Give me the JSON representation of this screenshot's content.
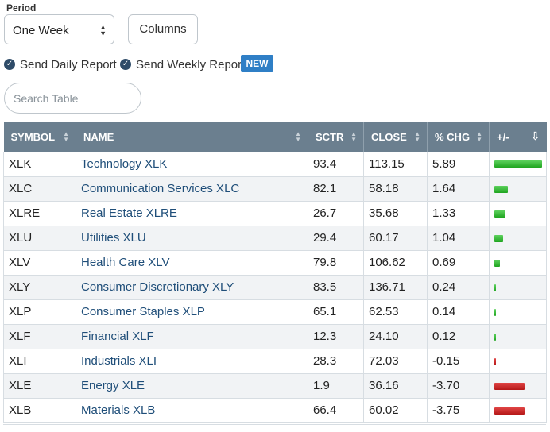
{
  "period": {
    "label": "Period",
    "value": "One Week"
  },
  "columns_button": "Columns",
  "checkboxes": [
    {
      "label": "Send Daily Report",
      "checked": true
    },
    {
      "label": "Send Weekly Report",
      "checked": true
    }
  ],
  "new_badge": "NEW",
  "search": {
    "placeholder": "Search Table",
    "value": ""
  },
  "table": {
    "headers": [
      "SYMBOL",
      "NAME",
      "SCTR",
      "CLOSE",
      "% CHG",
      "+/-"
    ],
    "rows": [
      {
        "symbol": "XLK",
        "name": "Technology XLK",
        "sctr": "93.4",
        "close": "113.15",
        "chg": "5.89"
      },
      {
        "symbol": "XLC",
        "name": "Communication Services XLC",
        "sctr": "82.1",
        "close": "58.18",
        "chg": "1.64"
      },
      {
        "symbol": "XLRE",
        "name": "Real Estate XLRE",
        "sctr": "26.7",
        "close": "35.68",
        "chg": "1.33"
      },
      {
        "symbol": "XLU",
        "name": "Utilities XLU",
        "sctr": "29.4",
        "close": "60.17",
        "chg": "1.04"
      },
      {
        "symbol": "XLV",
        "name": "Health Care XLV",
        "sctr": "79.8",
        "close": "106.62",
        "chg": "0.69"
      },
      {
        "symbol": "XLY",
        "name": "Consumer Discretionary XLY",
        "sctr": "83.5",
        "close": "136.71",
        "chg": "0.24"
      },
      {
        "symbol": "XLP",
        "name": "Consumer Staples XLP",
        "sctr": "65.1",
        "close": "62.53",
        "chg": "0.14"
      },
      {
        "symbol": "XLF",
        "name": "Financial XLF",
        "sctr": "12.3",
        "close": "24.10",
        "chg": "0.12"
      },
      {
        "symbol": "XLI",
        "name": "Industrials XLI",
        "sctr": "28.3",
        "close": "72.03",
        "chg": "-0.15"
      },
      {
        "symbol": "XLE",
        "name": "Energy XLE",
        "sctr": "1.9",
        "close": "36.16",
        "chg": "-3.70"
      },
      {
        "symbol": "XLB",
        "name": "Materials XLB",
        "sctr": "66.4",
        "close": "60.02",
        "chg": "-3.75"
      }
    ]
  },
  "colors": {
    "header_bg": "#6b7f8f",
    "positive": "#22aa22",
    "negative": "#c41e1e",
    "badge": "#2f7fc6",
    "link": "#1f4e79"
  }
}
